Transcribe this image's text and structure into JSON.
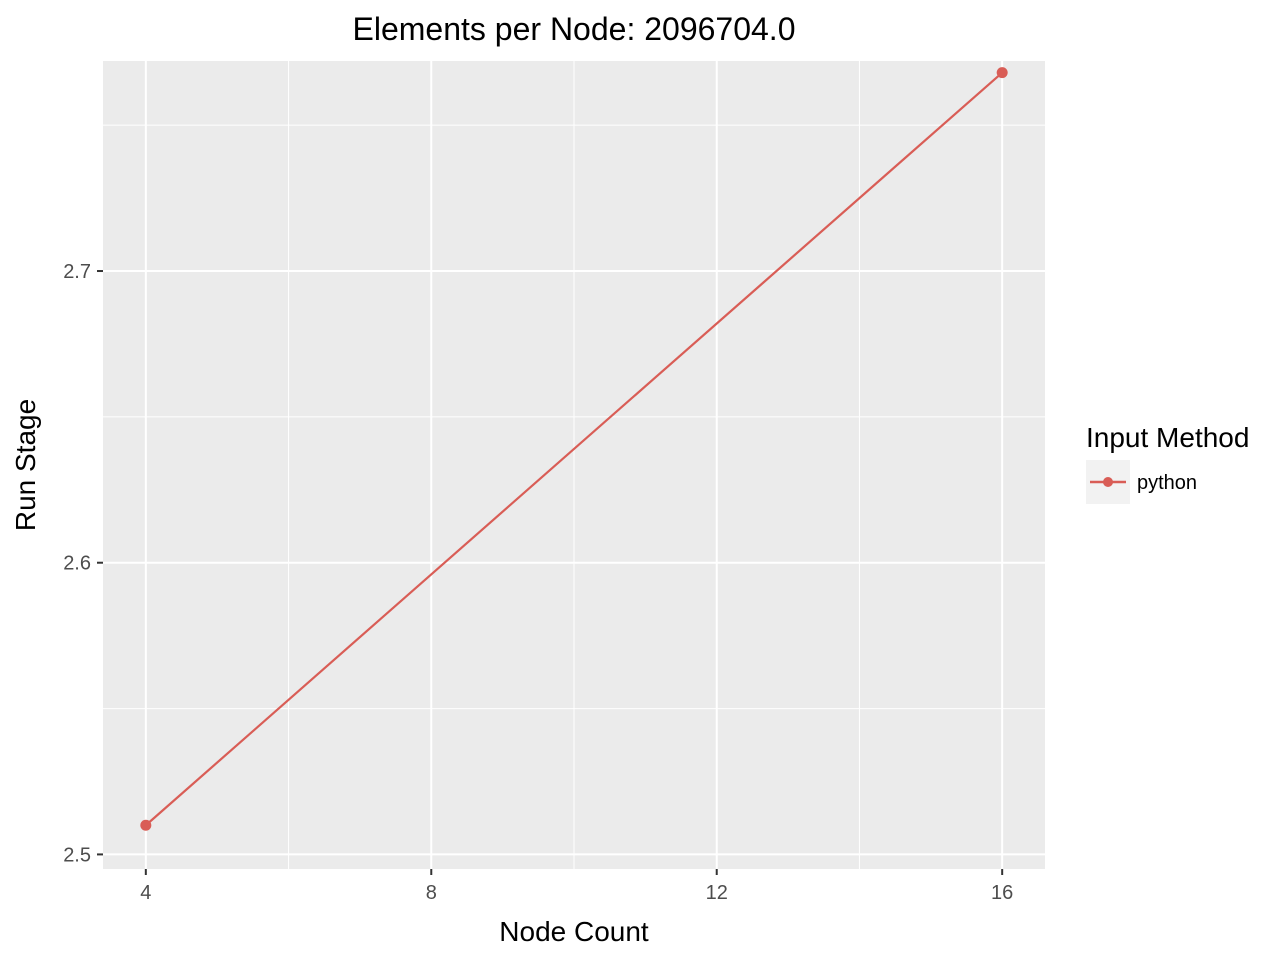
{
  "chart_data": {
    "type": "line",
    "title": "Elements per Node: 2096704.0",
    "xlabel": "Node Count",
    "ylabel": "Run Stage",
    "x_ticks": [
      4,
      8,
      12,
      16
    ],
    "y_ticks": [
      2.5,
      2.6,
      2.7
    ],
    "xlim": [
      3.4,
      16.6
    ],
    "ylim": [
      2.495,
      2.772
    ],
    "grid": true,
    "legend": {
      "title": "Input Method",
      "position": "right"
    },
    "series": [
      {
        "name": "python",
        "color": "#d95d56",
        "x": [
          4,
          16
        ],
        "y": [
          2.51,
          2.768
        ]
      }
    ]
  }
}
